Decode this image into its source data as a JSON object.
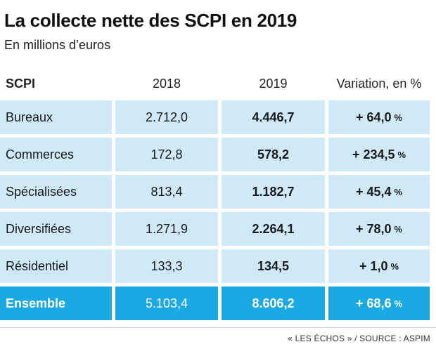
{
  "title": "La collecte nette des SCPI en 2019",
  "subtitle": "En millions d’euros",
  "footer": "« LES ÉCHOS » / SOURCE : ASPIM",
  "colors": {
    "row_bg": "#cfe9f7",
    "total_bg": "#1aa9e3"
  },
  "chart_data": {
    "type": "table",
    "title": "La collecte nette des SCPI en 2019",
    "subtitle": "En millions d’euros",
    "columns": [
      "SCPI",
      "2018",
      "2019",
      "Variation, en %"
    ],
    "rows": [
      {
        "label": "Bureaux",
        "y2018": "2.712,0",
        "y2019": "4.446,7",
        "variation": "+ 64,0",
        "unit": "%"
      },
      {
        "label": "Commerces",
        "y2018": "172,8",
        "y2019": "578,2",
        "variation": "+ 234,5",
        "unit": "%"
      },
      {
        "label": "Spécialisées",
        "y2018": "813,4",
        "y2019": "1.182,7",
        "variation": "+ 45,4",
        "unit": "%"
      },
      {
        "label": "Diversifiées",
        "y2018": "1.271,9",
        "y2019": "2.264,1",
        "variation": "+ 78,0",
        "unit": "%"
      },
      {
        "label": "Résidentiel",
        "y2018": "133,3",
        "y2019": "134,5",
        "variation": "+ 1,0",
        "unit": "%"
      }
    ],
    "total": {
      "label": "Ensemble",
      "y2018": "5.103,4",
      "y2019": "8.606,2",
      "variation": "+ 68,6",
      "unit": "%"
    }
  }
}
